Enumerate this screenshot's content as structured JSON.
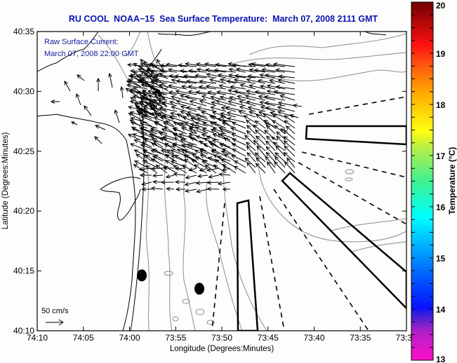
{
  "title": "RU COOL  NOAA−15  Sea Surface Temperature:  March 07, 2008 2111 GMT",
  "overlay": {
    "line1": "Raw Surface Current:",
    "line2": "March 07, 2008 22:00 GMT",
    "scale_label": "50 cm/s"
  },
  "axes": {
    "xlabel": "Longitude (Degrees:Minutes)",
    "ylabel": "Latitude (Degrees:Minutes)",
    "xticks": [
      "74:10",
      "74:05",
      "74:00",
      "73:55",
      "73:50",
      "73:45",
      "73:40",
      "73:35",
      "73:3"
    ],
    "yticks": [
      "40:10",
      "40:15",
      "40:20",
      "40:25",
      "40:30",
      "40:35"
    ]
  },
  "colorbar": {
    "label": "Temperature (°C)",
    "ticks": [
      "13",
      "14",
      "15",
      "16",
      "17",
      "18",
      "19",
      "20"
    ],
    "min": 13,
    "max": 20,
    "colors": [
      "#ff10c8",
      "#7a28d0",
      "#0a10ff",
      "#00a0ff",
      "#00ffff",
      "#60f080",
      "#ffff10",
      "#ffa000",
      "#ff1010",
      "#700000"
    ]
  },
  "colors": {
    "title": "#0a14b4",
    "overlay_text": "#1420a0",
    "coastline": "#000000",
    "bathymetry": "#8c8c8c"
  }
}
